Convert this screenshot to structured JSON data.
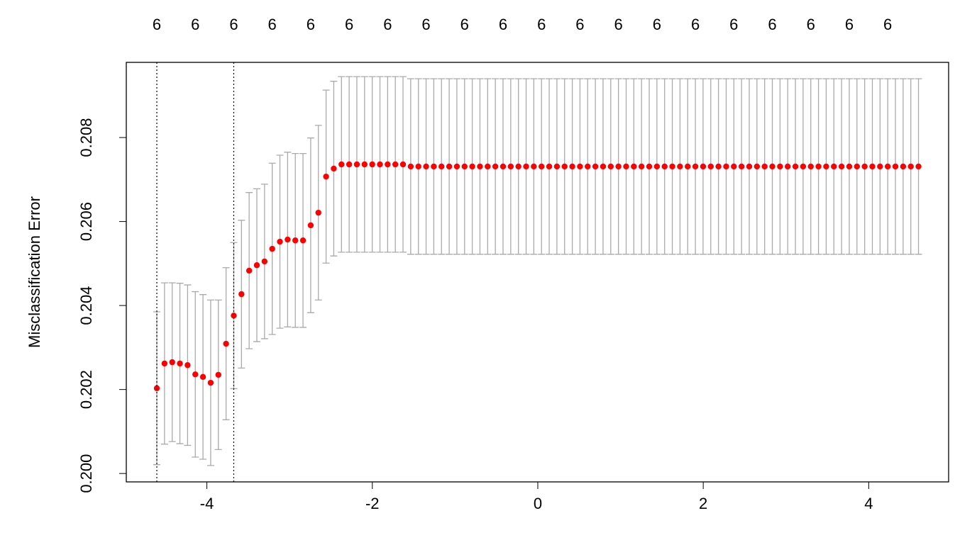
{
  "chart_data": {
    "type": "errorbar",
    "ylabel": "Misclassification Error",
    "x": [
      -4.605,
      -4.512,
      -4.419,
      -4.326,
      -4.233,
      -4.14,
      -4.047,
      -3.954,
      -3.861,
      -3.768,
      -3.675,
      -3.582,
      -3.489,
      -3.396,
      -3.303,
      -3.21,
      -3.117,
      -3.024,
      -2.931,
      -2.838,
      -2.745,
      -2.652,
      -2.559,
      -2.466,
      -2.373,
      -2.28,
      -2.187,
      -2.094,
      -2.001,
      -1.908,
      -1.815,
      -1.722,
      -1.629,
      -1.536,
      -1.443,
      -1.35,
      -1.257,
      -1.164,
      -1.071,
      -0.978,
      -0.885,
      -0.792,
      -0.699,
      -0.606,
      -0.513,
      -0.42,
      -0.327,
      -0.234,
      -0.141,
      -0.048,
      0.045,
      0.138,
      0.231,
      0.324,
      0.417,
      0.51,
      0.603,
      0.696,
      0.789,
      0.882,
      0.975,
      1.068,
      1.161,
      1.254,
      1.347,
      1.44,
      1.533,
      1.626,
      1.719,
      1.812,
      1.905,
      1.998,
      2.091,
      2.184,
      2.277,
      2.37,
      2.463,
      2.556,
      2.649,
      2.742,
      2.835,
      2.928,
      3.021,
      3.114,
      3.207,
      3.3,
      3.393,
      3.486,
      3.579,
      3.672,
      3.765,
      3.858,
      3.951,
      4.044,
      4.137,
      4.23,
      4.323,
      4.416,
      4.509,
      4.602
    ],
    "values": [
      0.20203,
      0.20262,
      0.20265,
      0.20262,
      0.20258,
      0.20236,
      0.2023,
      0.20216,
      0.20235,
      0.20309,
      0.20376,
      0.20427,
      0.20483,
      0.20496,
      0.20505,
      0.20535,
      0.20552,
      0.20557,
      0.20555,
      0.20555,
      0.20591,
      0.20621,
      0.20707,
      0.20726,
      0.20736,
      0.20736,
      0.20736,
      0.20736,
      0.20736,
      0.20736,
      0.20736,
      0.20736,
      0.20736,
      0.20731,
      0.20731,
      0.20731,
      0.20731,
      0.20731,
      0.20731,
      0.20731,
      0.20731,
      0.20731,
      0.20731,
      0.20731,
      0.20731,
      0.20731,
      0.20731,
      0.20731,
      0.20731,
      0.20731,
      0.20731,
      0.20731,
      0.20731,
      0.20731,
      0.20731,
      0.20731,
      0.20731,
      0.20731,
      0.20731,
      0.20731,
      0.20731,
      0.20731,
      0.20731,
      0.20731,
      0.20731,
      0.20731,
      0.20731,
      0.20731,
      0.20731,
      0.20731,
      0.20731,
      0.20731,
      0.20731,
      0.20731,
      0.20731,
      0.20731,
      0.20731,
      0.20731,
      0.20731,
      0.20731,
      0.20731,
      0.20731,
      0.20731,
      0.20731,
      0.20731,
      0.20731,
      0.20731,
      0.20731,
      0.20731,
      0.20731,
      0.20731,
      0.20731,
      0.20731,
      0.20731,
      0.20731,
      0.20731,
      0.20731,
      0.20731,
      0.20731,
      0.20731
    ],
    "errors": [
      0.00182,
      0.00192,
      0.00189,
      0.00191,
      0.00191,
      0.00197,
      0.00196,
      0.00197,
      0.00178,
      0.00181,
      0.00174,
      0.00176,
      0.00186,
      0.00182,
      0.00184,
      0.00204,
      0.00206,
      0.00208,
      0.00207,
      0.00207,
      0.00208,
      0.00208,
      0.00206,
      0.00208,
      0.00209,
      0.00209,
      0.00209,
      0.00209,
      0.00209,
      0.00209,
      0.00209,
      0.00209,
      0.00209,
      0.00209,
      0.00209,
      0.00209,
      0.00209,
      0.00209,
      0.00209,
      0.00209,
      0.00209,
      0.00209,
      0.00209,
      0.00209,
      0.00209,
      0.00209,
      0.00209,
      0.00209,
      0.00209,
      0.00209,
      0.00209,
      0.00209,
      0.00209,
      0.00209,
      0.00209,
      0.00209,
      0.00209,
      0.00209,
      0.00209,
      0.00209,
      0.00209,
      0.00209,
      0.00209,
      0.00209,
      0.00209,
      0.00209,
      0.00209,
      0.00209,
      0.00209,
      0.00209,
      0.00209,
      0.00209,
      0.00209,
      0.00209,
      0.00209,
      0.00209,
      0.00209,
      0.00209,
      0.00209,
      0.00209,
      0.00209,
      0.00209,
      0.00209,
      0.00209,
      0.00209,
      0.00209,
      0.00209,
      0.00209,
      0.00209,
      0.00209,
      0.00209,
      0.00209,
      0.00209,
      0.00209,
      0.00209,
      0.00209,
      0.00209,
      0.00209,
      0.00209,
      0.00209
    ],
    "color": "#ff0000",
    "error_color": "#aaaaaa",
    "top_ticks": [
      -4.605,
      -4.14,
      -3.675,
      -3.21,
      -2.745,
      -2.28,
      -1.815,
      -1.35,
      -0.885,
      -0.42,
      0.045,
      0.51,
      0.975,
      1.44,
      1.905,
      2.37,
      2.835,
      3.3,
      3.765,
      4.23
    ],
    "top_labels": [
      6,
      6,
      6,
      6,
      6,
      6,
      6,
      6,
      6,
      6,
      6,
      6,
      6,
      6,
      6,
      6,
      6,
      6,
      6,
      6
    ],
    "vlines": [
      -4.605,
      -3.675
    ],
    "xlim": [
      -4.974,
      4.966
    ],
    "xticks": [
      -4,
      -2,
      0,
      2,
      4
    ],
    "ylim": [
      0.1998,
      0.20979
    ],
    "yticks": [
      {
        "value": 0.2,
        "label": "0.200"
      },
      {
        "value": 0.202,
        "label": "0.202"
      },
      {
        "value": 0.204,
        "label": "0.204"
      },
      {
        "value": 0.206,
        "label": "0.206"
      },
      {
        "value": 0.208,
        "label": "0.208"
      }
    ]
  }
}
